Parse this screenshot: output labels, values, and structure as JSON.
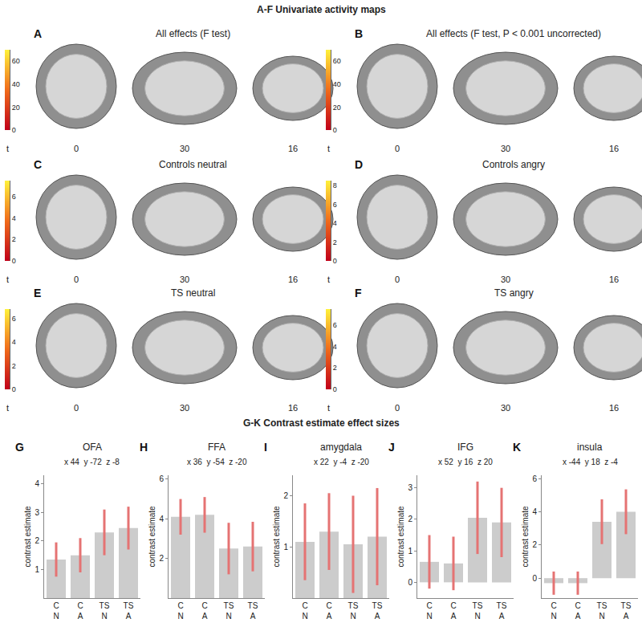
{
  "figure_title": "A-F Univariate activity maps",
  "maps": [
    {
      "label": "A",
      "title": "All effects (F test)",
      "colorbar": {
        "label": "t",
        "range": [
          0,
          70
        ],
        "ticks": [
          0,
          20,
          40,
          60
        ]
      },
      "slices": [
        0,
        30,
        16
      ]
    },
    {
      "label": "B",
      "title": "All effects (F test, P < 0.001 uncorrected)",
      "colorbar": {
        "label": "t",
        "range": [
          0,
          70
        ],
        "ticks": [
          0,
          20,
          40,
          60
        ]
      },
      "slices": [
        0,
        30,
        16
      ]
    },
    {
      "label": "C",
      "title": "Controls neutral",
      "colorbar": {
        "label": "t",
        "range": [
          0,
          7.5
        ],
        "ticks": [
          0,
          2,
          4,
          6
        ]
      },
      "slices": [
        0,
        30,
        16
      ]
    },
    {
      "label": "D",
      "title": "Controls angry",
      "colorbar": {
        "label": "t",
        "range": [
          0,
          8.5
        ],
        "ticks": [
          0,
          2,
          4,
          6,
          8
        ]
      },
      "slices": [
        0,
        30,
        16
      ]
    },
    {
      "label": "E",
      "title": "TS neutral",
      "colorbar": {
        "label": "t",
        "range": [
          0,
          6.8
        ],
        "ticks": [
          0,
          2,
          4,
          6
        ]
      },
      "slices": [
        0,
        30,
        16
      ]
    },
    {
      "label": "F",
      "title": "TS angry",
      "colorbar": {
        "label": "t",
        "range": [
          0,
          7.5
        ],
        "ticks": [
          0,
          2,
          4,
          6
        ]
      },
      "slices": [
        0,
        30,
        16
      ]
    }
  ],
  "section_title": "G-K Contrast estimate effect sizes",
  "chart_data": [
    {
      "type": "bar",
      "label": "G",
      "title": "OFA",
      "subtitle": "x 44  y -72  z -8",
      "ylabel": "contrast estimate",
      "categories": [
        "C N",
        "C A",
        "TS N",
        "TS A"
      ],
      "values": [
        1.35,
        1.5,
        2.3,
        2.45
      ],
      "error": {
        "values": [
          0.6,
          0.6,
          0.8,
          0.75
        ],
        "color": "#e57373"
      },
      "color": "#cccccc",
      "ylim": [
        0,
        4.3
      ],
      "yticks": [
        1,
        2,
        3,
        4
      ]
    },
    {
      "type": "bar",
      "label": "H",
      "title": "FFA",
      "subtitle": "x 36  y -54  z -20",
      "ylabel": "contrast estimate",
      "categories": [
        "C N",
        "C A",
        "TS N",
        "TS A"
      ],
      "values": [
        4.1,
        4.2,
        2.5,
        2.6
      ],
      "error": {
        "values": [
          0.9,
          0.9,
          1.3,
          1.25
        ],
        "color": "#e57373"
      },
      "color": "#cccccc",
      "ylim": [
        0,
        6.2
      ],
      "yticks": [
        2,
        4,
        6
      ]
    },
    {
      "type": "bar",
      "label": "I",
      "title": "amygdala",
      "subtitle": "x 22  y -4  z -20",
      "ylabel": "contrast estimate",
      "categories": [
        "C N",
        "C A",
        "TS N",
        "TS A"
      ],
      "values": [
        1.1,
        1.3,
        1.05,
        1.2
      ],
      "error": {
        "values": [
          0.75,
          0.75,
          0.95,
          0.95
        ],
        "color": "#e57373"
      },
      "color": "#cccccc",
      "ylim": [
        0,
        2.4
      ],
      "yticks": [
        1,
        2
      ]
    },
    {
      "type": "bar",
      "label": "J",
      "title": "IFG",
      "subtitle": "x 52  y 16  z 20",
      "ylabel": "contrast estimate",
      "categories": [
        "C N",
        "C A",
        "TS N",
        "TS A"
      ],
      "values": [
        0.65,
        0.6,
        2.05,
        1.9
      ],
      "error": {
        "values": [
          0.85,
          0.85,
          1.15,
          1.1
        ],
        "color": "#e57373"
      },
      "color": "#cccccc",
      "ylim": [
        -0.5,
        3.4
      ],
      "yticks": [
        0,
        1,
        2,
        3
      ]
    },
    {
      "type": "bar",
      "label": "K",
      "title": "insula",
      "subtitle": "x -44  y 18  z -4",
      "ylabel": "contrast estimate",
      "categories": [
        "C N",
        "C A",
        "TS N",
        "TS A"
      ],
      "values": [
        -0.3,
        -0.3,
        3.4,
        4.0
      ],
      "error": {
        "values": [
          0.7,
          0.7,
          1.35,
          1.35
        ],
        "color": "#e57373"
      },
      "color": "#cccccc",
      "ylim": [
        -1.2,
        6.2
      ],
      "yticks": [
        0,
        2,
        4,
        6
      ]
    }
  ]
}
